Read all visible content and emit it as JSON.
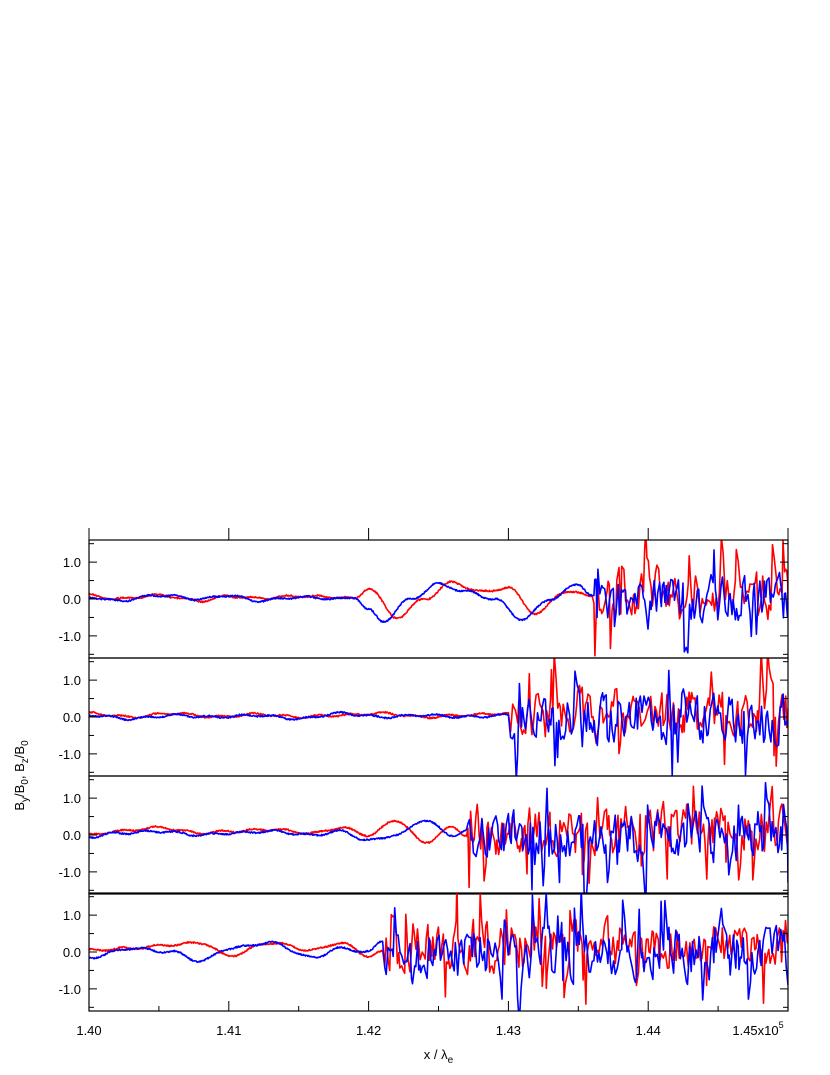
{
  "chart_data": {
    "type": "line",
    "layout": "four vertically stacked panels sharing the x axis",
    "xlabel": "x / λe",
    "xlabel_parts": {
      "main": "x / λ",
      "sub": "e"
    },
    "ylabel": "By/B0, Bz/B0",
    "ylabel_parts": [
      {
        "t": "B",
        "s": ""
      },
      {
        "t": "y",
        "s": "sub"
      },
      {
        "t": "/B",
        "s": ""
      },
      {
        "t": "0",
        "s": "sub"
      },
      {
        "t": ", B",
        "s": ""
      },
      {
        "t": "z",
        "s": "sub"
      },
      {
        "t": "/B",
        "s": ""
      },
      {
        "t": "0",
        "s": "sub"
      }
    ],
    "xlim": [
      140000,
      145000
    ],
    "x_ticks": [
      140000,
      141000,
      142000,
      143000,
      144000,
      145000
    ],
    "x_tick_labels": [
      "1.40",
      "1.41",
      "1.42",
      "1.43",
      "1.44",
      "1.45x10"
    ],
    "x_tick_exponent": "5",
    "ylim": [
      -1.6,
      1.6
    ],
    "y_ticks": [
      -1.0,
      0.0,
      1.0
    ],
    "y_tick_labels": [
      "-1.0",
      "0.0",
      "1.0"
    ],
    "grid": false,
    "legend": "none",
    "series_colors": {
      "By": "#ff0000",
      "Bz": "#0000ff"
    },
    "panels": [
      {
        "index": 1,
        "transition_x": 143600,
        "series": [
          {
            "color": "#ff0000",
            "x": [
              140000,
              140200,
              140500,
              140800,
              141000,
              141200,
              141500,
              141800,
              141900,
              142000,
              142200,
              142400,
              142600,
              142800,
              143000,
              143200,
              143400,
              143600
            ],
            "y": [
              0.1,
              0.0,
              0.1,
              -0.05,
              0.08,
              0.02,
              0.08,
              0.05,
              0.0,
              0.3,
              -0.5,
              0.0,
              0.45,
              0.2,
              0.3,
              -0.4,
              0.2,
              0.1
            ]
          },
          {
            "color": "#0000ff",
            "x": [
              140000,
              140200,
              140500,
              140800,
              141000,
              141200,
              141500,
              141800,
              141900,
              142000,
              142100,
              142300,
              142500,
              142700,
              142900,
              143100,
              143300,
              143500,
              143600
            ],
            "y": [
              0.05,
              -0.05,
              0.1,
              0.0,
              0.1,
              -0.05,
              0.05,
              0.0,
              0.05,
              -0.3,
              -0.6,
              0.0,
              0.4,
              0.2,
              0.0,
              -0.55,
              0.0,
              0.4,
              0.1
            ]
          }
        ]
      },
      {
        "index": 2,
        "transition_x": 143050,
        "series": [
          {
            "color": "#ff0000",
            "x": [
              140000,
              140300,
              140600,
              140900,
              141200,
              141500,
              141800,
              142100,
              142400,
              142700,
              143000
            ],
            "y": [
              0.1,
              0.0,
              0.1,
              0.0,
              0.08,
              0.0,
              0.05,
              0.1,
              0.0,
              0.05,
              0.1
            ]
          },
          {
            "color": "#0000ff",
            "x": [
              140000,
              140300,
              140600,
              140900,
              141200,
              141500,
              141800,
              142100,
              142400,
              142700,
              143000
            ],
            "y": [
              0.05,
              -0.05,
              0.05,
              0.0,
              0.05,
              -0.05,
              0.1,
              0.0,
              0.05,
              0.0,
              0.05
            ]
          }
        ]
      },
      {
        "index": 3,
        "transition_x": 142750,
        "series": [
          {
            "color": "#ff0000",
            "x": [
              140000,
              140200,
              140500,
              140800,
              141000,
              141300,
              141600,
              141800,
              142000,
              142200,
              142400,
              142600,
              142700
            ],
            "y": [
              0.0,
              0.1,
              0.2,
              0.05,
              0.1,
              0.15,
              0.05,
              0.2,
              0.0,
              0.4,
              -0.2,
              0.2,
              0.0
            ]
          },
          {
            "color": "#0000ff",
            "x": [
              140000,
              140200,
              140500,
              140800,
              141000,
              141300,
              141600,
              141800,
              142000,
              142200,
              142400,
              142600,
              142700
            ],
            "y": [
              -0.05,
              0.05,
              0.1,
              0.0,
              0.05,
              0.1,
              0.0,
              0.1,
              -0.15,
              0.0,
              0.4,
              0.0,
              0.1
            ]
          }
        ]
      },
      {
        "index": 4,
        "transition_x": 142150,
        "series": [
          {
            "color": "#ff0000",
            "x": [
              140000,
              140300,
              140600,
              140800,
              141000,
              141300,
              141600,
              141800,
              142000,
              142100
            ],
            "y": [
              0.05,
              0.1,
              0.2,
              0.25,
              -0.1,
              0.25,
              0.05,
              0.25,
              -0.1,
              0.0
            ]
          },
          {
            "color": "#0000ff",
            "x": [
              140000,
              140300,
              140600,
              140800,
              141000,
              141300,
              141600,
              141800,
              142000,
              142100
            ],
            "y": [
              -0.15,
              0.1,
              0.0,
              -0.25,
              0.1,
              0.25,
              -0.15,
              0.1,
              0.0,
              0.3
            ]
          }
        ]
      }
    ]
  }
}
